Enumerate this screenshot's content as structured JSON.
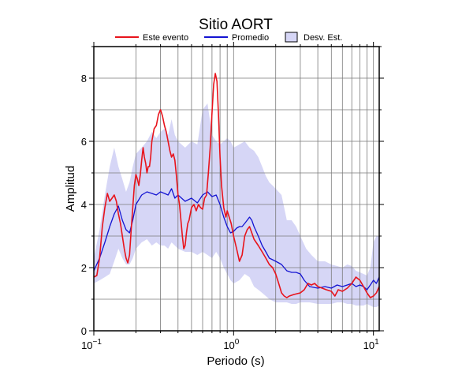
{
  "chart_data": {
    "type": "line",
    "title": "Sitio AORT",
    "xlabel": "Periodo (s)",
    "ylabel": "Amplitud",
    "x_scale": "log",
    "xlim": [
      0.1,
      11
    ],
    "ylim": [
      0,
      9
    ],
    "x_ticks": [
      {
        "value": 0.1,
        "base": "10",
        "exp": "−1"
      },
      {
        "value": 1,
        "base": "10",
        "exp": "0"
      },
      {
        "value": 10,
        "base": "10",
        "exp": "1"
      }
    ],
    "y_ticks": [
      0,
      2,
      4,
      6,
      8
    ],
    "grid": true,
    "legend_position": "top",
    "legend": [
      {
        "label": "Este evento",
        "kind": "line",
        "color": "#e8141c"
      },
      {
        "label": "Promedio",
        "kind": "line",
        "color": "#1414d2"
      },
      {
        "label": "Desv. Est.",
        "kind": "band",
        "color": "#d6d6f6"
      }
    ],
    "series": [
      {
        "name": "Este evento",
        "color": "#e8141c",
        "points": [
          [
            0.1,
            1.7
          ],
          [
            0.105,
            1.75
          ],
          [
            0.11,
            2.3
          ],
          [
            0.115,
            3.3
          ],
          [
            0.12,
            3.9
          ],
          [
            0.125,
            4.35
          ],
          [
            0.13,
            4.1
          ],
          [
            0.135,
            4.2
          ],
          [
            0.14,
            4.3
          ],
          [
            0.145,
            4.1
          ],
          [
            0.15,
            3.7
          ],
          [
            0.155,
            3.4
          ],
          [
            0.16,
            3.0
          ],
          [
            0.165,
            2.6
          ],
          [
            0.17,
            2.3
          ],
          [
            0.175,
            2.15
          ],
          [
            0.18,
            2.4
          ],
          [
            0.185,
            3.2
          ],
          [
            0.19,
            3.9
          ],
          [
            0.195,
            4.6
          ],
          [
            0.2,
            4.95
          ],
          [
            0.205,
            4.8
          ],
          [
            0.21,
            4.6
          ],
          [
            0.215,
            4.95
          ],
          [
            0.22,
            5.4
          ],
          [
            0.225,
            5.8
          ],
          [
            0.23,
            5.5
          ],
          [
            0.235,
            5.3
          ],
          [
            0.24,
            5.0
          ],
          [
            0.245,
            5.2
          ],
          [
            0.25,
            5.2
          ],
          [
            0.255,
            5.5
          ],
          [
            0.26,
            6.0
          ],
          [
            0.27,
            6.4
          ],
          [
            0.28,
            6.5
          ],
          [
            0.29,
            6.85
          ],
          [
            0.3,
            7.0
          ],
          [
            0.31,
            6.8
          ],
          [
            0.32,
            6.5
          ],
          [
            0.33,
            6.3
          ],
          [
            0.34,
            6.0
          ],
          [
            0.35,
            5.7
          ],
          [
            0.36,
            5.5
          ],
          [
            0.37,
            5.6
          ],
          [
            0.38,
            5.4
          ],
          [
            0.39,
            4.9
          ],
          [
            0.4,
            4.3
          ],
          [
            0.41,
            4.0
          ],
          [
            0.42,
            3.5
          ],
          [
            0.43,
            3.0
          ],
          [
            0.44,
            2.6
          ],
          [
            0.45,
            2.7
          ],
          [
            0.46,
            3.1
          ],
          [
            0.47,
            3.4
          ],
          [
            0.48,
            3.5
          ],
          [
            0.5,
            3.9
          ],
          [
            0.52,
            4.0
          ],
          [
            0.54,
            3.8
          ],
          [
            0.56,
            4.0
          ],
          [
            0.58,
            3.9
          ],
          [
            0.6,
            3.85
          ],
          [
            0.62,
            4.2
          ],
          [
            0.64,
            4.3
          ],
          [
            0.66,
            5.0
          ],
          [
            0.68,
            5.8
          ],
          [
            0.7,
            6.9
          ],
          [
            0.72,
            7.8
          ],
          [
            0.74,
            8.15
          ],
          [
            0.76,
            7.9
          ],
          [
            0.78,
            6.8
          ],
          [
            0.8,
            5.5
          ],
          [
            0.82,
            4.6
          ],
          [
            0.85,
            3.9
          ],
          [
            0.88,
            3.6
          ],
          [
            0.9,
            3.8
          ],
          [
            0.93,
            3.6
          ],
          [
            0.96,
            3.4
          ],
          [
            1.0,
            3.0
          ],
          [
            1.05,
            2.6
          ],
          [
            1.1,
            2.2
          ],
          [
            1.15,
            2.4
          ],
          [
            1.2,
            3.0
          ],
          [
            1.25,
            3.2
          ],
          [
            1.3,
            3.3
          ],
          [
            1.35,
            3.1
          ],
          [
            1.4,
            2.9
          ],
          [
            1.5,
            2.7
          ],
          [
            1.6,
            2.5
          ],
          [
            1.7,
            2.3
          ],
          [
            1.8,
            2.1
          ],
          [
            1.9,
            2.0
          ],
          [
            2.0,
            1.8
          ],
          [
            2.1,
            1.5
          ],
          [
            2.2,
            1.2
          ],
          [
            2.3,
            1.1
          ],
          [
            2.4,
            1.05
          ],
          [
            2.5,
            1.1
          ],
          [
            2.7,
            1.15
          ],
          [
            3.0,
            1.2
          ],
          [
            3.2,
            1.3
          ],
          [
            3.4,
            1.5
          ],
          [
            3.6,
            1.45
          ],
          [
            3.8,
            1.5
          ],
          [
            4.0,
            1.4
          ],
          [
            4.3,
            1.35
          ],
          [
            4.6,
            1.3
          ],
          [
            5.0,
            1.25
          ],
          [
            5.3,
            1.1
          ],
          [
            5.6,
            1.3
          ],
          [
            6.0,
            1.25
          ],
          [
            6.5,
            1.35
          ],
          [
            7.0,
            1.5
          ],
          [
            7.5,
            1.7
          ],
          [
            8.0,
            1.6
          ],
          [
            8.5,
            1.4
          ],
          [
            9.0,
            1.2
          ],
          [
            9.5,
            1.05
          ],
          [
            10.0,
            1.1
          ],
          [
            10.5,
            1.2
          ],
          [
            11.0,
            1.4
          ]
        ]
      },
      {
        "name": "Promedio",
        "color": "#1414d2",
        "points": [
          [
            0.1,
            1.9
          ],
          [
            0.11,
            2.3
          ],
          [
            0.12,
            2.8
          ],
          [
            0.13,
            3.3
          ],
          [
            0.14,
            3.7
          ],
          [
            0.15,
            3.95
          ],
          [
            0.16,
            3.5
          ],
          [
            0.17,
            3.2
          ],
          [
            0.18,
            3.1
          ],
          [
            0.19,
            3.5
          ],
          [
            0.2,
            4.0
          ],
          [
            0.22,
            4.3
          ],
          [
            0.24,
            4.4
          ],
          [
            0.26,
            4.35
          ],
          [
            0.28,
            4.3
          ],
          [
            0.3,
            4.4
          ],
          [
            0.32,
            4.35
          ],
          [
            0.34,
            4.3
          ],
          [
            0.36,
            4.5
          ],
          [
            0.38,
            4.2
          ],
          [
            0.4,
            4.3
          ],
          [
            0.45,
            4.1
          ],
          [
            0.5,
            4.2
          ],
          [
            0.55,
            4.05
          ],
          [
            0.6,
            4.3
          ],
          [
            0.65,
            4.4
          ],
          [
            0.7,
            4.25
          ],
          [
            0.75,
            4.3
          ],
          [
            0.8,
            4.0
          ],
          [
            0.85,
            3.6
          ],
          [
            0.9,
            3.3
          ],
          [
            0.95,
            3.1
          ],
          [
            1.0,
            3.15
          ],
          [
            1.05,
            3.25
          ],
          [
            1.1,
            3.3
          ],
          [
            1.15,
            3.3
          ],
          [
            1.2,
            3.4
          ],
          [
            1.25,
            3.5
          ],
          [
            1.3,
            3.6
          ],
          [
            1.35,
            3.5
          ],
          [
            1.4,
            3.3
          ],
          [
            1.5,
            3.0
          ],
          [
            1.6,
            2.7
          ],
          [
            1.7,
            2.5
          ],
          [
            1.8,
            2.3
          ],
          [
            1.9,
            2.25
          ],
          [
            2.0,
            2.2
          ],
          [
            2.1,
            2.15
          ],
          [
            2.2,
            2.1
          ],
          [
            2.4,
            1.9
          ],
          [
            2.6,
            1.85
          ],
          [
            2.8,
            1.85
          ],
          [
            3.0,
            1.8
          ],
          [
            3.2,
            1.6
          ],
          [
            3.5,
            1.4
          ],
          [
            4.0,
            1.35
          ],
          [
            4.5,
            1.4
          ],
          [
            5.0,
            1.35
          ],
          [
            5.5,
            1.45
          ],
          [
            6.0,
            1.4
          ],
          [
            6.5,
            1.45
          ],
          [
            7.0,
            1.5
          ],
          [
            7.5,
            1.4
          ],
          [
            8.0,
            1.45
          ],
          [
            8.5,
            1.4
          ],
          [
            9.0,
            1.3
          ],
          [
            9.5,
            1.45
          ],
          [
            10.0,
            1.6
          ],
          [
            10.5,
            1.5
          ],
          [
            11.0,
            1.7
          ]
        ]
      }
    ],
    "band": {
      "name": "Desv. Est.",
      "color": "#d6d6f6",
      "upper": [
        [
          0.1,
          2.3
        ],
        [
          0.11,
          3.2
        ],
        [
          0.12,
          4.3
        ],
        [
          0.13,
          5.2
        ],
        [
          0.14,
          5.8
        ],
        [
          0.15,
          5.2
        ],
        [
          0.16,
          4.8
        ],
        [
          0.17,
          4.4
        ],
        [
          0.18,
          4.7
        ],
        [
          0.19,
          5.2
        ],
        [
          0.2,
          5.6
        ],
        [
          0.22,
          5.8
        ],
        [
          0.24,
          6.0
        ],
        [
          0.26,
          6.3
        ],
        [
          0.28,
          6.1
        ],
        [
          0.3,
          6.3
        ],
        [
          0.32,
          6.4
        ],
        [
          0.34,
          6.2
        ],
        [
          0.36,
          6.7
        ],
        [
          0.38,
          6.2
        ],
        [
          0.4,
          6.0
        ],
        [
          0.45,
          5.8
        ],
        [
          0.5,
          6.0
        ],
        [
          0.55,
          5.9
        ],
        [
          0.6,
          7.0
        ],
        [
          0.65,
          7.2
        ],
        [
          0.7,
          6.2
        ],
        [
          0.75,
          6.0
        ],
        [
          0.8,
          5.9
        ],
        [
          0.85,
          6.0
        ],
        [
          0.9,
          6.1
        ],
        [
          0.95,
          6.0
        ],
        [
          1.0,
          5.8
        ],
        [
          1.1,
          5.9
        ],
        [
          1.2,
          6.0
        ],
        [
          1.3,
          5.8
        ],
        [
          1.4,
          5.7
        ],
        [
          1.5,
          5.5
        ],
        [
          1.6,
          5.2
        ],
        [
          1.7,
          4.9
        ],
        [
          1.8,
          4.7
        ],
        [
          1.9,
          4.6
        ],
        [
          2.0,
          4.5
        ],
        [
          2.2,
          4.3
        ],
        [
          2.4,
          3.5
        ],
        [
          2.6,
          3.5
        ],
        [
          2.8,
          3.3
        ],
        [
          3.0,
          3.0
        ],
        [
          3.3,
          2.6
        ],
        [
          3.6,
          2.4
        ],
        [
          4.0,
          2.2
        ],
        [
          4.5,
          2.2
        ],
        [
          5.0,
          2.1
        ],
        [
          5.5,
          2.05
        ],
        [
          6.0,
          2.0
        ],
        [
          6.5,
          2.1
        ],
        [
          7.0,
          2.05
        ],
        [
          7.5,
          1.9
        ],
        [
          8.0,
          1.85
        ],
        [
          8.5,
          1.8
        ],
        [
          9.0,
          1.75
        ],
        [
          9.5,
          2.0
        ],
        [
          10.0,
          2.8
        ],
        [
          10.5,
          3.0
        ],
        [
          11.0,
          3.0
        ]
      ],
      "lower": [
        [
          0.1,
          1.5
        ],
        [
          0.11,
          1.6
        ],
        [
          0.12,
          1.7
        ],
        [
          0.13,
          1.8
        ],
        [
          0.14,
          2.2
        ],
        [
          0.15,
          2.6
        ],
        [
          0.16,
          2.3
        ],
        [
          0.17,
          2.1
        ],
        [
          0.18,
          2.1
        ],
        [
          0.19,
          2.3
        ],
        [
          0.2,
          2.6
        ],
        [
          0.22,
          2.8
        ],
        [
          0.24,
          2.9
        ],
        [
          0.26,
          2.7
        ],
        [
          0.28,
          2.8
        ],
        [
          0.3,
          2.7
        ],
        [
          0.32,
          2.7
        ],
        [
          0.34,
          2.6
        ],
        [
          0.36,
          2.8
        ],
        [
          0.38,
          2.7
        ],
        [
          0.4,
          2.6
        ],
        [
          0.45,
          2.5
        ],
        [
          0.5,
          2.5
        ],
        [
          0.55,
          2.4
        ],
        [
          0.6,
          2.5
        ],
        [
          0.65,
          2.4
        ],
        [
          0.7,
          2.3
        ],
        [
          0.75,
          2.5
        ],
        [
          0.8,
          2.3
        ],
        [
          0.85,
          2.0
        ],
        [
          0.9,
          1.8
        ],
        [
          0.95,
          1.6
        ],
        [
          1.0,
          1.5
        ],
        [
          1.1,
          1.6
        ],
        [
          1.2,
          1.8
        ],
        [
          1.3,
          1.7
        ],
        [
          1.4,
          1.4
        ],
        [
          1.5,
          1.3
        ],
        [
          1.6,
          1.2
        ],
        [
          1.7,
          1.1
        ],
        [
          1.8,
          1.0
        ],
        [
          1.9,
          0.95
        ],
        [
          2.0,
          0.9
        ],
        [
          2.2,
          0.9
        ],
        [
          2.4,
          0.9
        ],
        [
          2.6,
          0.85
        ],
        [
          2.8,
          0.85
        ],
        [
          3.0,
          0.9
        ],
        [
          3.5,
          0.9
        ],
        [
          4.0,
          0.85
        ],
        [
          4.5,
          0.85
        ],
        [
          5.0,
          0.85
        ],
        [
          5.5,
          0.9
        ],
        [
          6.0,
          0.9
        ],
        [
          6.5,
          0.85
        ],
        [
          7.0,
          0.85
        ],
        [
          7.5,
          0.8
        ],
        [
          8.0,
          0.8
        ],
        [
          8.5,
          0.8
        ],
        [
          9.0,
          0.85
        ],
        [
          9.5,
          0.8
        ],
        [
          10.0,
          0.75
        ],
        [
          10.5,
          0.75
        ],
        [
          11.0,
          0.8
        ]
      ]
    }
  }
}
